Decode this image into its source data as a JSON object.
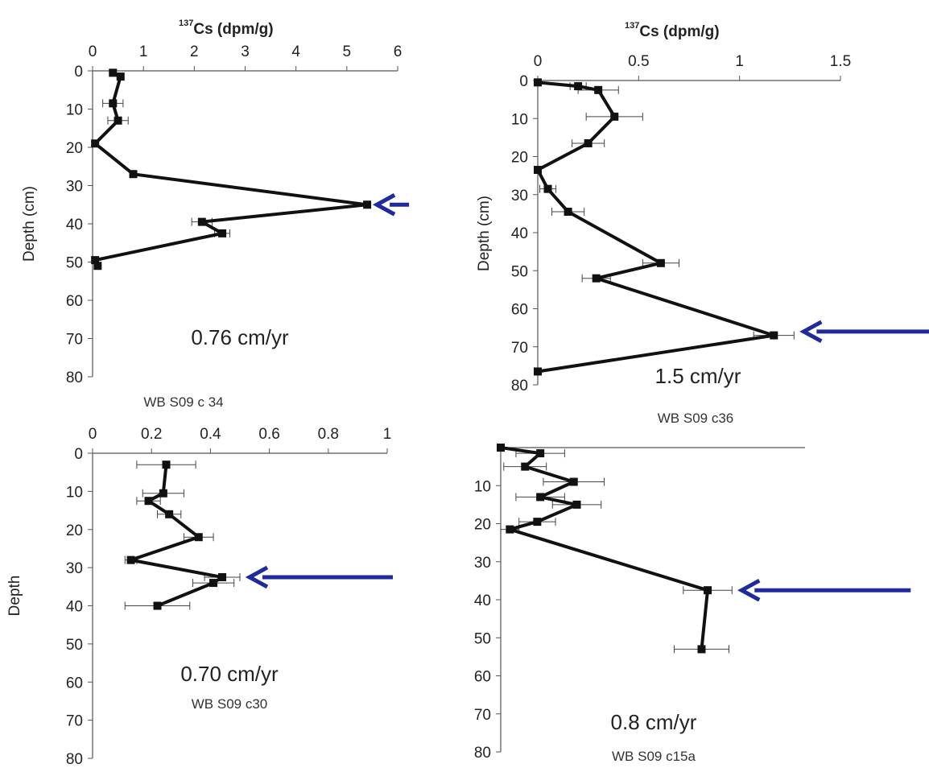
{
  "chart_data": [
    {
      "type": "line",
      "core_label": "WB S09 c 34",
      "rate_label": "0.76 cm/yr",
      "x_axis_label": "Cs (dpm/g)",
      "x_axis_sup": "137",
      "ylabel": "Depth (cm)",
      "xlim": [
        0,
        6
      ],
      "ylim": [
        0,
        80
      ],
      "x_ticks": [
        "0",
        "1",
        "2",
        "3",
        "4",
        "5",
        "6"
      ],
      "y_ticks": [
        "0",
        "10",
        "20",
        "30",
        "40",
        "50",
        "60",
        "70",
        "80"
      ],
      "points": [
        {
          "x": 0.4,
          "y": 0.5,
          "err": 0
        },
        {
          "x": 0.55,
          "y": 1.5,
          "err": 0
        },
        {
          "x": 0.4,
          "y": 8.5,
          "err": 0.2
        },
        {
          "x": 0.5,
          "y": 13,
          "err": 0.2
        },
        {
          "x": 0.05,
          "y": 19,
          "err": 0
        },
        {
          "x": 0.8,
          "y": 27,
          "err": 0
        },
        {
          "x": 5.4,
          "y": 35,
          "err": 0
        },
        {
          "x": 2.15,
          "y": 39.5,
          "err": 0.2
        },
        {
          "x": 2.55,
          "y": 42.5,
          "err": 0.15
        },
        {
          "x": 0.05,
          "y": 49.5,
          "err": 0
        },
        {
          "x": 0.1,
          "y": 51,
          "err": 0
        }
      ],
      "arrow_depth": 35
    },
    {
      "type": "line",
      "core_label": "WB S09 c36",
      "rate_label": "1.5 cm/yr",
      "x_axis_label": "Cs (dpm/g)",
      "x_axis_sup": "137",
      "ylabel": "Depth (cm)",
      "xlim": [
        0,
        1.5
      ],
      "ylim": [
        0,
        80
      ],
      "x_ticks": [
        "0",
        "0.5",
        "1",
        "1.5"
      ],
      "y_ticks": [
        "0",
        "10",
        "20",
        "30",
        "40",
        "50",
        "60",
        "70",
        "80"
      ],
      "points": [
        {
          "x": 0.0,
          "y": 0.5,
          "err": 0
        },
        {
          "x": 0.2,
          "y": 1.5,
          "err": 0.04
        },
        {
          "x": 0.3,
          "y": 2.5,
          "err": 0.1
        },
        {
          "x": 0.38,
          "y": 9.5,
          "err": 0.14
        },
        {
          "x": 0.25,
          "y": 16.5,
          "err": 0.08
        },
        {
          "x": 0.0,
          "y": 23.5,
          "err": 0
        },
        {
          "x": 0.05,
          "y": 28.5,
          "err": 0.04
        },
        {
          "x": 0.15,
          "y": 34.5,
          "err": 0.08
        },
        {
          "x": 0.61,
          "y": 48,
          "err": 0.09
        },
        {
          "x": 0.29,
          "y": 52,
          "err": 0.07
        },
        {
          "x": 1.17,
          "y": 67,
          "err": 0.1
        },
        {
          "x": 0.0,
          "y": 76.5,
          "err": 0
        }
      ],
      "arrow_depth": 66
    },
    {
      "type": "line",
      "core_label": "WB S09 c30",
      "rate_label": "0.70 cm/yr",
      "ylabel": "Depth",
      "xlim": [
        0,
        1
      ],
      "ylim": [
        0,
        80
      ],
      "x_ticks": [
        "0",
        "0.2",
        "0.4",
        "0.6",
        "0.8",
        "1"
      ],
      "y_ticks": [
        "0",
        "10",
        "20",
        "30",
        "40",
        "50",
        "60",
        "70",
        "80"
      ],
      "points": [
        {
          "x": 0.25,
          "y": 3,
          "err": 0.1
        },
        {
          "x": 0.24,
          "y": 10.5,
          "err": 0.07
        },
        {
          "x": 0.19,
          "y": 12.5,
          "err": 0.04
        },
        {
          "x": 0.26,
          "y": 16,
          "err": 0.04
        },
        {
          "x": 0.36,
          "y": 22,
          "err": 0.05
        },
        {
          "x": 0.13,
          "y": 28,
          "err": 0.02
        },
        {
          "x": 0.44,
          "y": 32.5,
          "err": 0.06
        },
        {
          "x": 0.41,
          "y": 34,
          "err": 0.07
        },
        {
          "x": 0.22,
          "y": 40,
          "err": 0.11
        }
      ],
      "arrow_depth": 32.5
    },
    {
      "type": "line",
      "core_label": "WB S09 c15a",
      "rate_label": "0.8 cm/yr",
      "xlim": [
        0,
        1
      ],
      "ylim": [
        0,
        80
      ],
      "y_ticks": [
        "10",
        "20",
        "30",
        "40",
        "50",
        "60",
        "70",
        "80"
      ],
      "points": [
        {
          "x": 0.0,
          "y": 0,
          "err": 0
        },
        {
          "x": 0.13,
          "y": 1.5,
          "err": 0.08
        },
        {
          "x": 0.08,
          "y": 5,
          "err": 0.07
        },
        {
          "x": 0.24,
          "y": 9,
          "err": 0.1
        },
        {
          "x": 0.13,
          "y": 13,
          "err": 0.08
        },
        {
          "x": 0.25,
          "y": 15,
          "err": 0.08
        },
        {
          "x": 0.12,
          "y": 19.5,
          "err": 0.06
        },
        {
          "x": 0.03,
          "y": 21.5,
          "err": 0.03
        },
        {
          "x": 0.68,
          "y": 37.5,
          "err": 0.08
        },
        {
          "x": 0.66,
          "y": 53,
          "err": 0.09
        }
      ],
      "arrow_depth": 37.5
    }
  ],
  "colors": {
    "line": "#111111",
    "arrow": "#1f2a9e",
    "axis": "#555555"
  }
}
